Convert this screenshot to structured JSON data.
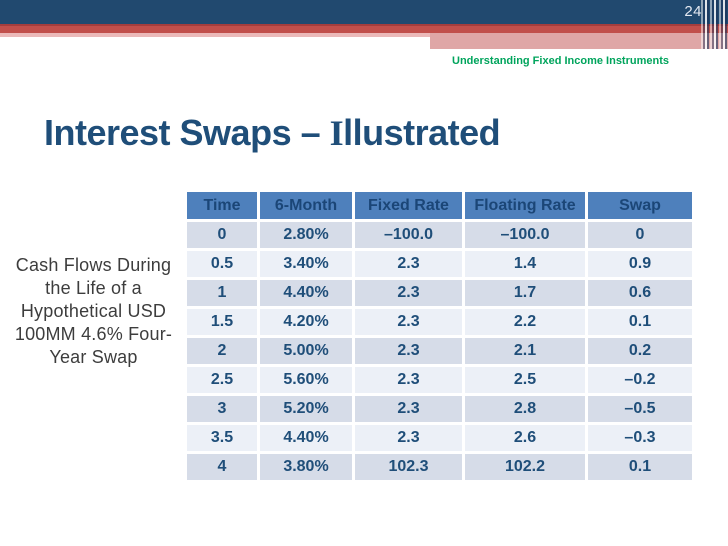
{
  "page": {
    "number": "24"
  },
  "header": {
    "course_title": "Understanding Fixed Income Instruments"
  },
  "slide": {
    "title": {
      "prefix": "Interest Swaps – ",
      "serif_initial": "I",
      "rest": "llustrated"
    },
    "caption": "Cash Flows During\nthe Life of a\nHypothetical USD\n100MM 4.6% Four-\nYear Swap"
  },
  "table": {
    "headers": [
      "Time",
      "6-Month",
      "Fixed Rate",
      "Floating Rate",
      "Swap"
    ],
    "rows": [
      [
        "0",
        "2.80%",
        "–100.0",
        "–100.0",
        "0"
      ],
      [
        "0.5",
        "3.40%",
        "2.3",
        "1.4",
        "0.9"
      ],
      [
        "1",
        "4.40%",
        "2.3",
        "1.7",
        "0.6"
      ],
      [
        "1.5",
        "4.20%",
        "2.3",
        "2.2",
        "0.1"
      ],
      [
        "2",
        "5.00%",
        "2.3",
        "2.1",
        "0.2"
      ],
      [
        "2.5",
        "5.60%",
        "2.3",
        "2.5",
        "–0.2"
      ],
      [
        "3",
        "5.20%",
        "2.3",
        "2.8",
        "–0.5"
      ],
      [
        "3.5",
        "4.40%",
        "2.3",
        "2.6",
        "–0.3"
      ],
      [
        "4",
        "3.80%",
        "102.3",
        "102.2",
        "0.1"
      ]
    ]
  },
  "colors": {
    "bar_navy": "#21496F",
    "bar_red": "#C14F4B",
    "bar_pink": "#DFA6A6",
    "table_header_blue": "#4E80BC",
    "row_band_dark": "#D6DCE8",
    "row_band_light": "#ECF0F7",
    "title_navy": "#1F4E79",
    "header_green": "#00A45C"
  }
}
